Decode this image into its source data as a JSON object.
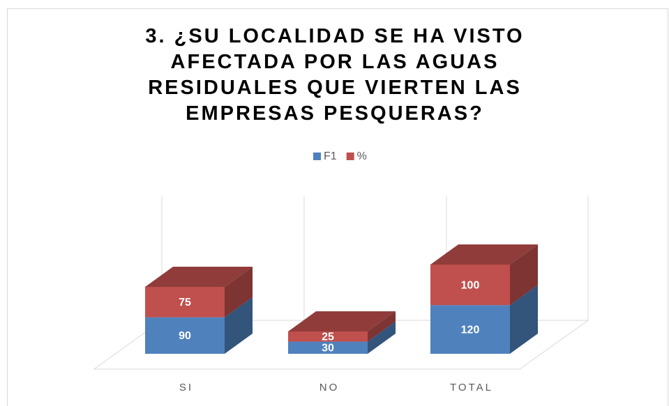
{
  "chart_data": {
    "type": "bar3d_stacked",
    "title": "3. ¿SU LOCALIDAD SE HA VISTO AFECTADA POR LAS AGUAS RESIDUALES QUE VIERTEN LAS EMPRESAS PESQUERAS?",
    "categories": [
      "SI",
      "NO",
      "TOTAL"
    ],
    "series": [
      {
        "name": "F1",
        "color": "#4f81bd",
        "values": [
          90,
          30,
          120
        ]
      },
      {
        "name": "%",
        "color": "#c0504d",
        "values": [
          75,
          25,
          100
        ]
      }
    ],
    "legend": "top"
  }
}
